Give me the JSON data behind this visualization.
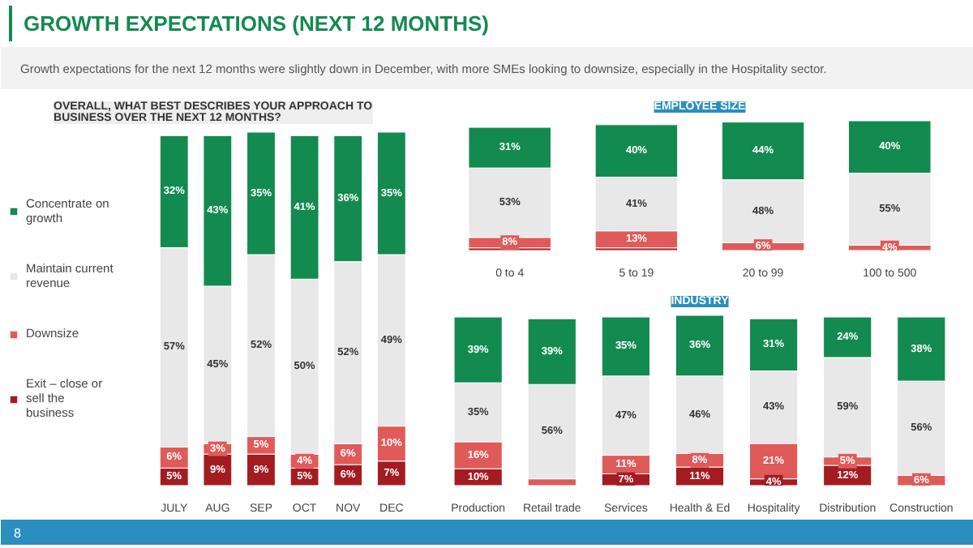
{
  "chart_data": [
    {
      "type": "other",
      "title": "GROWTH EXPECTATIONS (NEXT 12 MONTHS)",
      "subtitle": "Growth expectations for the next 12 months were slightly down in December,  with more SMEs looking to downsize, especially in the Hospitality sector.",
      "annotations": [
        "8"
      ]
    },
    {
      "type": "bar",
      "stacked": true,
      "title": "OVERALL, WHAT BEST DESCRIBES YOUR APPROACH TO BUSINESS OVER THE NEXT 12 MONTHS?",
      "categories": [
        "JULY",
        "AUG",
        "SEP",
        "OCT",
        "NOV",
        "DEC"
      ],
      "tick_labels": "x",
      "legend": "left",
      "grid": false,
      "series": [
        {
          "name": "Exit – close or sell the business",
          "color": "#a31c22",
          "values": [
            5,
            9,
            9,
            5,
            6,
            7
          ],
          "value_labels": [
            "5%",
            "9%",
            "9%",
            "5%",
            "6%",
            "7%"
          ]
        },
        {
          "name": "Downsize",
          "color": "#e05a5a",
          "values": [
            6,
            3,
            5,
            4,
            6,
            10
          ],
          "value_labels": [
            "6%",
            "3%",
            "5%",
            "4%",
            "6%",
            "10%"
          ]
        },
        {
          "name": "Maintain current revenue",
          "color": "#e8e8e8",
          "values": [
            57,
            45,
            52,
            50,
            52,
            49
          ],
          "value_labels": [
            "57%",
            "45%",
            "52%",
            "50%",
            "52%",
            "49%"
          ]
        },
        {
          "name": "Concentrate on growth",
          "color": "#138a4f",
          "values": [
            32,
            43,
            35,
            41,
            36,
            35
          ],
          "value_labels": [
            "32%",
            "43%",
            "35%",
            "41%",
            "36%",
            "35%"
          ]
        }
      ]
    },
    {
      "type": "bar",
      "stacked": true,
      "title": "EMPLOYEE SIZE",
      "categories": [
        "0 to 4",
        "5 to 19",
        "20 to 99",
        "100 to 500"
      ],
      "tick_labels": "x",
      "grid": false,
      "series": [
        {
          "color": "#a31c22",
          "values": [
            2,
            2,
            null,
            null
          ],
          "value_labels": [
            null,
            null,
            null,
            null
          ]
        },
        {
          "color": "#e05a5a",
          "values": [
            8,
            13,
            6,
            4
          ],
          "value_labels": [
            "8%",
            "13%",
            "6%",
            "4%"
          ]
        },
        {
          "color": "#e8e8e8",
          "values": [
            53,
            41,
            48,
            55
          ],
          "value_labels": [
            "53%",
            "41%",
            "48%",
            "55%"
          ]
        },
        {
          "color": "#138a4f",
          "values": [
            31,
            40,
            44,
            40
          ],
          "value_labels": [
            "31%",
            "40%",
            "44%",
            "40%"
          ]
        }
      ]
    },
    {
      "type": "bar",
      "stacked": true,
      "title": "INDUSTRY",
      "categories": [
        "Production",
        "Retail trade",
        "Services",
        "Health & Ed",
        "Hospitality",
        "Distribution",
        "Construction"
      ],
      "tick_labels": "x",
      "grid": false,
      "series": [
        {
          "color": "#a31c22",
          "values": [
            10,
            null,
            7,
            11,
            4,
            12,
            null
          ],
          "value_labels": [
            "10%",
            null,
            "7%",
            "11%",
            "4%",
            "12%",
            null
          ]
        },
        {
          "color": "#e05a5a",
          "values": [
            16,
            4,
            11,
            8,
            21,
            5,
            6
          ],
          "value_labels": [
            "16%",
            null,
            "11%",
            "8%",
            "21%",
            "5%",
            "6%"
          ]
        },
        {
          "color": "#e8e8e8",
          "values": [
            35,
            56,
            47,
            46,
            43,
            59,
            56
          ],
          "value_labels": [
            "35%",
            "56%",
            "47%",
            "46%",
            "43%",
            "59%",
            "56%"
          ]
        },
        {
          "color": "#138a4f",
          "values": [
            39,
            39,
            35,
            36,
            31,
            24,
            38
          ],
          "value_labels": [
            "39%",
            "39%",
            "35%",
            "36%",
            "31%",
            "24%",
            "38%"
          ]
        }
      ]
    }
  ]
}
